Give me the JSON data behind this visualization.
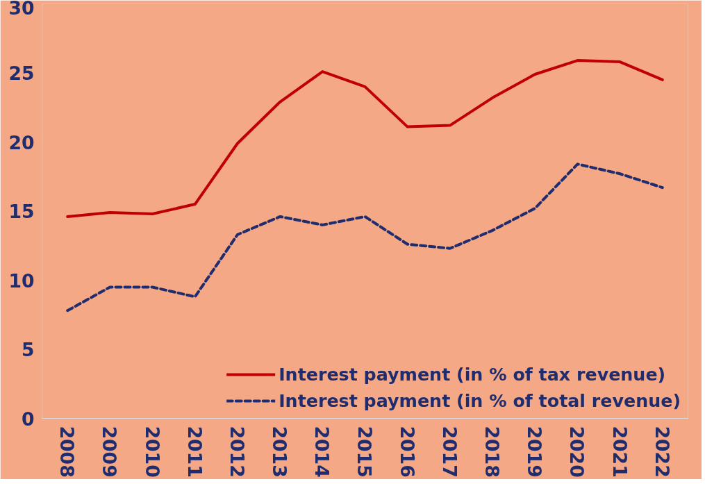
{
  "chart_data": {
    "type": "line",
    "categories": [
      "2008",
      "2009",
      "2010",
      "2011",
      "2012",
      "2013",
      "2014",
      "2015",
      "2016",
      "2017",
      "2018",
      "2019",
      "2020",
      "2021",
      "2022"
    ],
    "series": [
      {
        "name": "Interest payment (in % of tax revenue)",
        "color": "#c00000",
        "line_style": "solid",
        "values": [
          14.6,
          14.9,
          14.8,
          15.5,
          19.9,
          22.9,
          25.1,
          24.0,
          21.1,
          21.2,
          23.2,
          24.9,
          25.9,
          25.8,
          24.5
        ]
      },
      {
        "name": "Interest payment (in % of total revenue)",
        "color": "#1f2d6e",
        "line_style": "dashed",
        "values": [
          7.8,
          9.5,
          9.5,
          8.8,
          13.3,
          14.6,
          14.0,
          14.6,
          12.6,
          12.3,
          13.6,
          15.2,
          18.4,
          17.7,
          16.7
        ]
      }
    ],
    "ylim": [
      0,
      30
    ],
    "yticks": [
      0,
      5,
      10,
      15,
      20,
      25,
      30
    ],
    "grid": false,
    "legend": "bottom right",
    "marker": "none"
  }
}
